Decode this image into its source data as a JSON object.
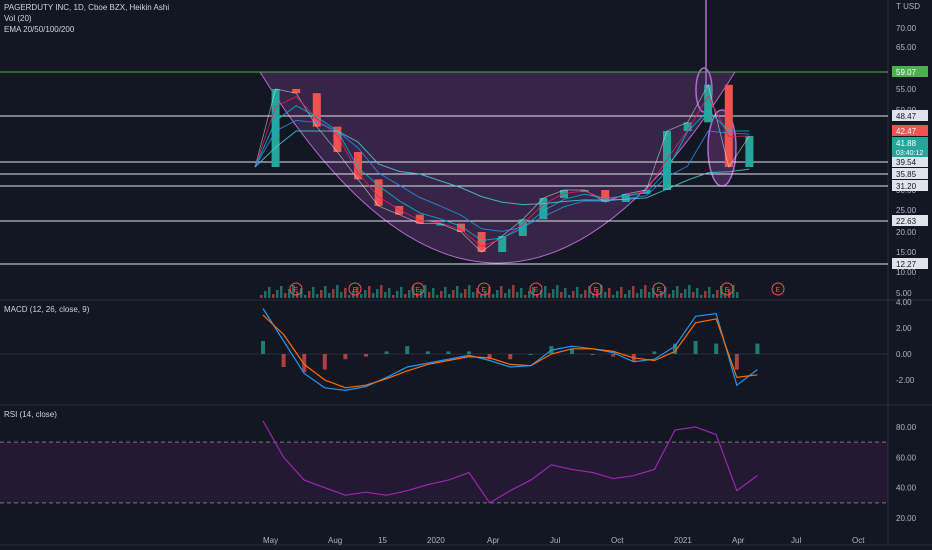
{
  "header": {
    "symbol_line": "PAGERDUTY INC, 1D, Cboe BZX, Heikin Ashi",
    "vol_line": "Vol (20)",
    "ema_line": "EMA 20/50/100/200",
    "currency": "USD",
    "scale_mode_glyph": "T"
  },
  "colors": {
    "background": "#131722",
    "cup_fill": "#7b3f8e",
    "cup_stroke": "#b36bd1",
    "up": "#26a69a",
    "down": "#ef5350",
    "grid": "#1e2230",
    "line_white": "#e0e3eb",
    "line_green": "#4caf50",
    "macd_line": "#2196f3",
    "signal_line": "#ff6d00",
    "rsi_line": "#9c27b0",
    "price_badge": "#26a69a",
    "sell_badge": "#ef5350"
  },
  "chart_data": [
    {
      "type": "line",
      "pane": "price",
      "title": "PAGERDUTY INC, 1D, Cboe BZX, Heikin Ashi",
      "y_ticks": [
        "70.00",
        "65.00",
        "55.00",
        "50.00",
        "45.00",
        "40.00",
        "35.00",
        "30.00",
        "25.00",
        "20.00",
        "15.00",
        "10.00",
        "5.00"
      ],
      "y_tick_values": [
        70,
        65,
        55,
        50,
        45,
        40,
        35,
        30,
        25,
        20,
        15,
        10,
        5
      ],
      "x_ticks": [
        "May",
        "Aug",
        "15",
        "2020",
        "Apr",
        "Jul",
        "Oct",
        "2021",
        "Apr",
        "Jul",
        "Oct"
      ],
      "horizontal_levels": [
        {
          "label": "59.07",
          "value": 59.07,
          "color": "#4caf50"
        },
        {
          "label": "48.47",
          "value": 48.47,
          "color": "#e0e3eb"
        },
        {
          "label": "39.54",
          "value": 39.54,
          "color": "#e0e3eb"
        },
        {
          "label": "35.85",
          "value": 35.85,
          "color": "#e0e3eb"
        },
        {
          "label": "31.20",
          "value": 31.2,
          "color": "#e0e3eb"
        },
        {
          "label": "22.63",
          "value": 22.63,
          "color": "#e0e3eb"
        },
        {
          "label": "12.27",
          "value": 12.27,
          "color": "#e0e3eb"
        }
      ],
      "badges": [
        {
          "label": "59.07",
          "kind": "level"
        },
        {
          "label": "42.47",
          "kind": "sell"
        },
        {
          "label": "41.88",
          "kind": "last"
        },
        {
          "label": "03:40:12",
          "kind": "countdown"
        }
      ],
      "series": [
        {
          "name": "Heikin Ashi close",
          "x_dates": [
            "2019-04",
            "2019-05",
            "2019-06",
            "2019-07",
            "2019-08",
            "2019-09",
            "2019-10",
            "2019-11",
            "2019-12",
            "2020-01",
            "2020-02",
            "2020-03",
            "2020-04",
            "2020-05",
            "2020-06",
            "2020-07",
            "2020-08",
            "2020-09",
            "2020-10",
            "2020-11",
            "2020-12",
            "2021-01",
            "2021-02",
            "2021-03",
            "2021-04"
          ],
          "values": [
            38,
            55,
            54,
            46,
            40,
            33,
            26,
            24,
            22,
            22,
            20,
            15,
            19,
            23,
            28,
            30,
            30,
            27,
            29,
            30,
            43,
            47,
            56,
            38,
            41.88
          ]
        }
      ],
      "event_markers": {
        "label": "E",
        "months": [
          "2019-05",
          "2019-08",
          "2019-11",
          "2020-03",
          "2020-06",
          "2020-09",
          "2020-12",
          "2021-03",
          "2021-06"
        ]
      }
    },
    {
      "type": "line",
      "pane": "macd",
      "title": "MACD (12, 26, close, 9)",
      "y_ticks": [
        "4.00",
        "2.00",
        "0.00",
        "-2.00"
      ],
      "y_tick_values": [
        4,
        2,
        0,
        -2
      ],
      "series": [
        {
          "name": "MACD",
          "values": [
            3.5,
            1.0,
            -1.5,
            -2.6,
            -2.8,
            -2.5,
            -1.8,
            -1.0,
            -0.7,
            -0.4,
            -0.1,
            -0.5,
            -1.0,
            -0.9,
            0.3,
            0.6,
            0.4,
            0.1,
            -0.6,
            -0.4,
            0.6,
            2.9,
            3.1,
            -2.4,
            -1.2
          ]
        },
        {
          "name": "Signal",
          "values": [
            3.0,
            1.5,
            -0.8,
            -2.0,
            -2.6,
            -2.4,
            -1.9,
            -1.3,
            -0.8,
            -0.5,
            -0.2,
            -0.3,
            -0.8,
            -0.9,
            0.0,
            0.4,
            0.4,
            0.2,
            -0.3,
            -0.5,
            0.2,
            2.4,
            2.7,
            -1.8,
            -1.6
          ]
        }
      ]
    },
    {
      "type": "line",
      "pane": "rsi",
      "title": "RSI (14, close)",
      "y_ticks": [
        "80.00",
        "60.00",
        "40.00",
        "20.00"
      ],
      "y_tick_values": [
        80,
        60,
        40,
        20
      ],
      "bands": [
        70,
        30
      ],
      "series": [
        {
          "name": "RSI",
          "values": [
            84,
            60,
            45,
            40,
            35,
            37,
            35,
            38,
            42,
            45,
            50,
            30,
            38,
            45,
            55,
            52,
            50,
            46,
            48,
            52,
            78,
            80,
            75,
            38,
            48
          ]
        }
      ]
    }
  ]
}
